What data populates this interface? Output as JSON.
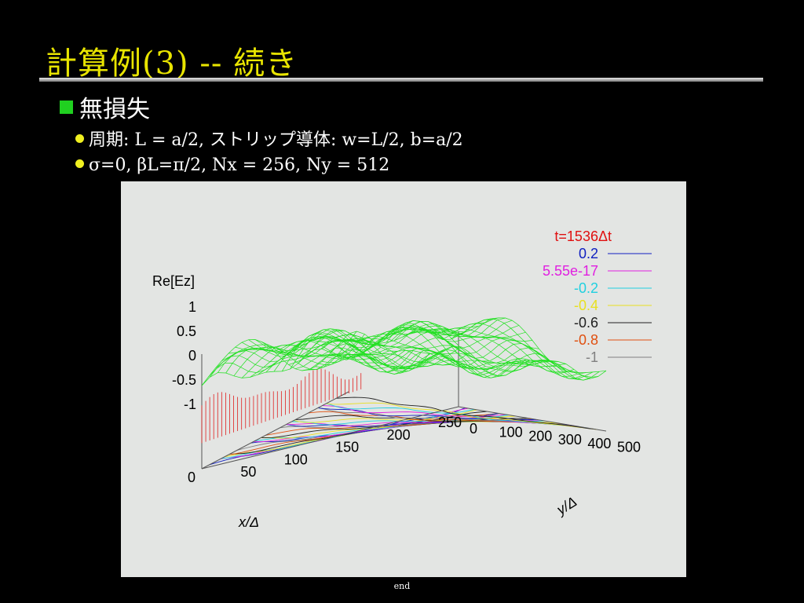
{
  "slide": {
    "title": "計算例(3) -- 続き",
    "bullet_main": "無損失",
    "bullet_sub1": "周期: L = a/2, ストリップ導体: w=L/2, b=a/2",
    "bullet_sub2": "σ=0, βL=π/2, Nx = 256, Ny = 512",
    "footer": "end"
  },
  "chart_data": {
    "type": "surface",
    "z_label": "Re[Ez]",
    "x_label": "x/Δ",
    "y_label": "y/Δ",
    "z_ticks": [
      "1",
      "0.5",
      "0",
      "-0.5",
      "-1"
    ],
    "x_ticks": [
      "0",
      "50",
      "100",
      "150",
      "200",
      "250"
    ],
    "y_ticks": [
      "0",
      "100",
      "200",
      "300",
      "400",
      "500"
    ],
    "xlim": [
      0,
      256
    ],
    "ylim": [
      0,
      512
    ],
    "zlim": [
      -1,
      1
    ],
    "legend_title": "t=1536Δt",
    "legend": [
      {
        "label": "0.2",
        "color": "#1020c0"
      },
      {
        "label": "5.55e-17",
        "color": "#e020e0"
      },
      {
        "label": "-0.2",
        "color": "#20d0e0"
      },
      {
        "label": "-0.4",
        "color": "#e8e020"
      },
      {
        "label": "-0.6",
        "color": "#202020"
      },
      {
        "label": "-0.8",
        "color": "#e05010"
      },
      {
        "label": "-1",
        "color": "#808080"
      }
    ],
    "surface_color": "#20e020",
    "underside_color": "#e02020"
  }
}
